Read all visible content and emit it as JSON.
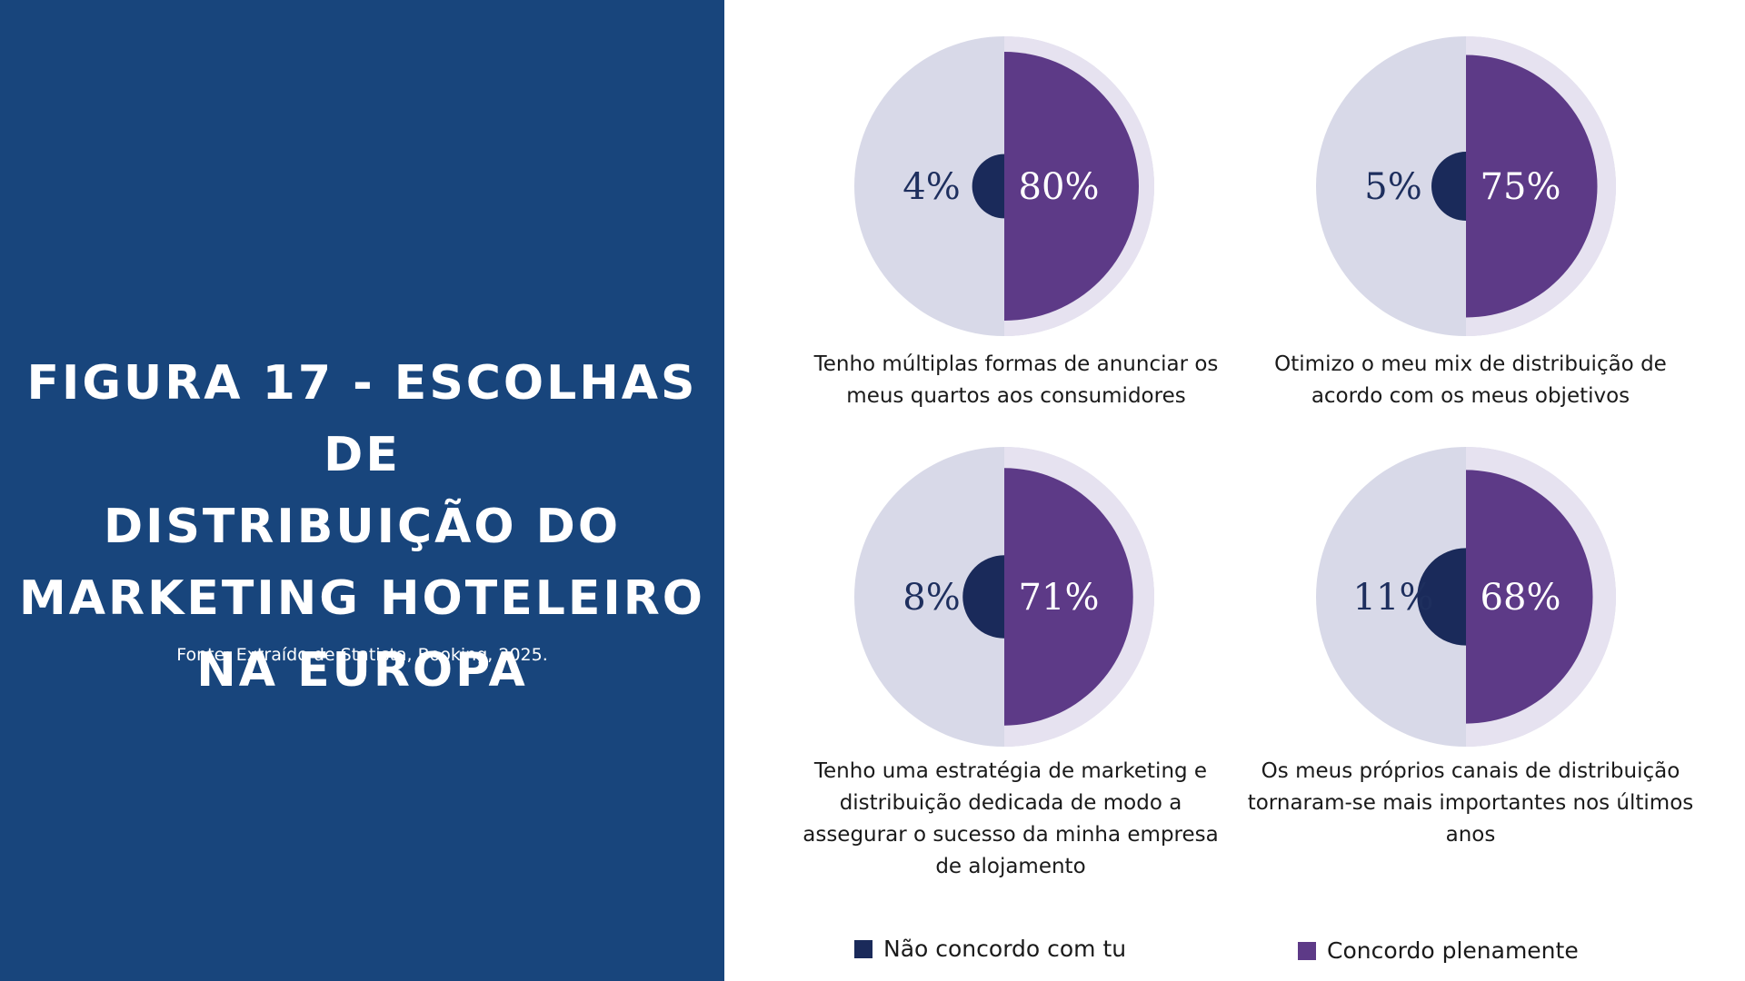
{
  "figure": {
    "title": "Figura 17 - Escolhas de\ndistribuição do\nmarketing hoteleiro\nna Europa",
    "source": "Fonte: Extraído de Statista, Booking, 2025."
  },
  "colors": {
    "panel": "#18457c",
    "agree": "#5d3a87",
    "disagree": "#1a2a5a",
    "pie_base": "#d8d9e8",
    "pie_ring": "#e6e2f0",
    "label_dark": "#1e2f5e",
    "label_light": "#ffffff"
  },
  "chart_data": {
    "type": "pie",
    "legend": [
      {
        "name": "Não concordo com tu",
        "color": "#1a2a5a"
      },
      {
        "name": "Concordo plenamente",
        "color": "#5d3a87"
      }
    ],
    "charts": [
      {
        "caption": "Tenho múltiplas formas de anunciar os meus quartos aos consumidores",
        "disagree": 4,
        "agree": 80,
        "disagree_label": "4%",
        "agree_label": "80%"
      },
      {
        "caption": "Otimizo o meu mix de distribuição de acordo com os meus objetivos",
        "disagree": 5,
        "agree": 75,
        "disagree_label": "5%",
        "agree_label": "75%"
      },
      {
        "caption": "Tenho uma estratégia de marketing e distribuição dedicada de modo a assegurar o sucesso da minha empresa de alojamento",
        "disagree": 8,
        "agree": 71,
        "disagree_label": "8%",
        "agree_label": "71%"
      },
      {
        "caption": "Os meus próprios canais de distribuição tornaram-se mais importantes nos últimos anos",
        "disagree": 11,
        "agree": 68,
        "disagree_label": "11%",
        "agree_label": "68%"
      }
    ]
  }
}
